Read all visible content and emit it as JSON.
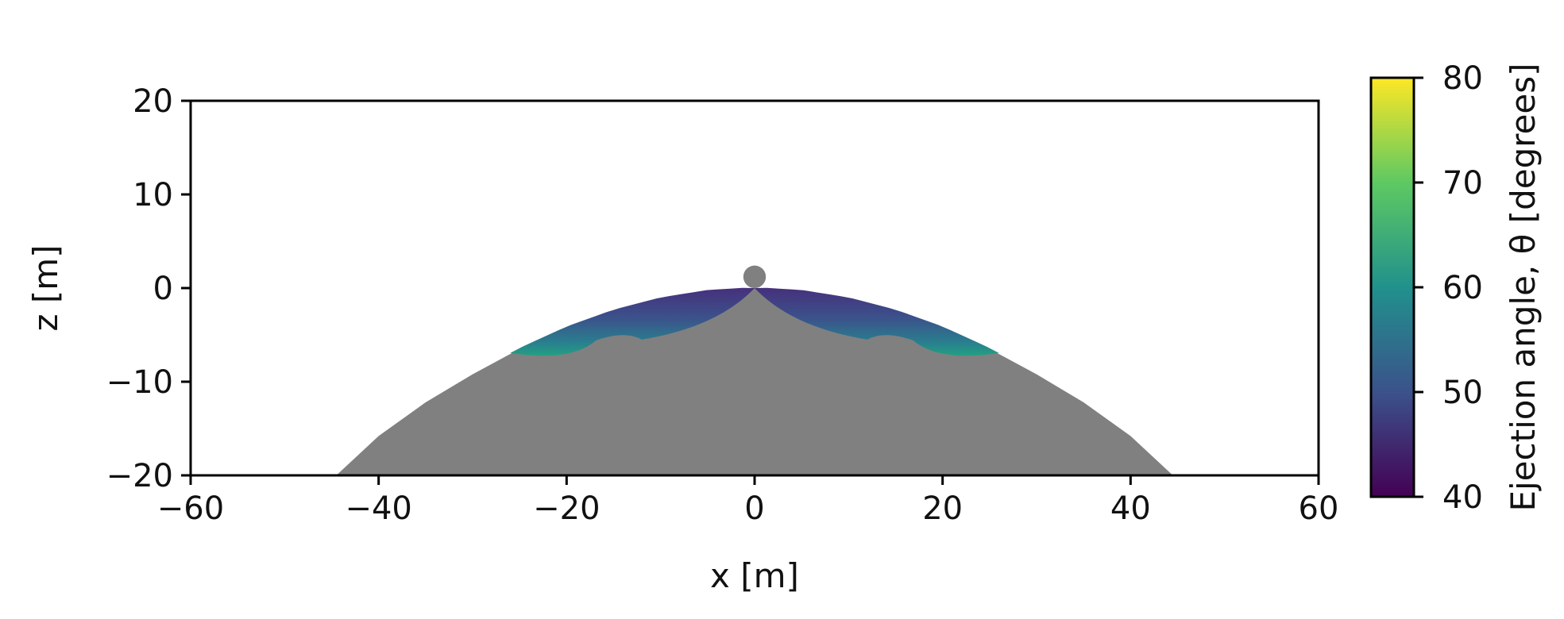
{
  "chart_data": {
    "type": "heatmap",
    "title": "",
    "xlabel": "x [m]",
    "ylabel": "z [m]",
    "xlim": [
      -60,
      60
    ],
    "ylim": [
      -20,
      20
    ],
    "x_ticks": [
      -60,
      -40,
      -20,
      0,
      20,
      40,
      60
    ],
    "y_ticks": [
      20,
      10,
      0,
      -10,
      -20
    ],
    "x_tick_labels": [
      "−60",
      "−40",
      "−20",
      "0",
      "20",
      "40",
      "60"
    ],
    "y_tick_labels": [
      "20",
      "10",
      "0",
      "−10",
      "−20"
    ],
    "grid": false,
    "target_body": {
      "color": "#808080",
      "surface_profile": [
        {
          "x": -44.5,
          "z": -20
        },
        {
          "x": -40,
          "z": -15.8
        },
        {
          "x": -35,
          "z": -12.2
        },
        {
          "x": -30,
          "z": -9.2
        },
        {
          "x": -25,
          "z": -6.5
        },
        {
          "x": -20,
          "z": -4.2
        },
        {
          "x": -15,
          "z": -2.4
        },
        {
          "x": -10,
          "z": -1.1
        },
        {
          "x": -5,
          "z": -0.3
        },
        {
          "x": 0,
          "z": 0
        },
        {
          "x": 5,
          "z": -0.3
        },
        {
          "x": 10,
          "z": -1.1
        },
        {
          "x": 15,
          "z": -2.4
        },
        {
          "x": 20,
          "z": -4.2
        },
        {
          "x": 25,
          "z": -6.5
        },
        {
          "x": 30,
          "z": -9.2
        },
        {
          "x": 35,
          "z": -12.2
        },
        {
          "x": 40,
          "z": -15.8
        },
        {
          "x": 44.5,
          "z": -20
        }
      ]
    },
    "impactor": {
      "x": 0,
      "z": 1.2,
      "radius": 1.2,
      "color": "#808080"
    },
    "ejecta_lobes": [
      {
        "side": "left",
        "outer": [
          -26,
          -6.5
        ],
        "inner": [
          -12,
          -5.5
        ],
        "apex": [
          0,
          0
        ]
      },
      {
        "side": "right",
        "outer": [
          26,
          -6.5
        ],
        "inner": [
          12,
          -5.5
        ],
        "apex": [
          0,
          0
        ]
      }
    ],
    "colorbar": {
      "label": "Ejection angle, θ [degrees]",
      "colormap": "viridis",
      "min": 40,
      "max": 80,
      "ticks": [
        80,
        70,
        60,
        50,
        40
      ],
      "tick_labels": [
        "80",
        "70",
        "60",
        "50",
        "40"
      ],
      "stops": [
        "#440154",
        "#3b528b",
        "#21918c",
        "#5ec962",
        "#fde725"
      ]
    }
  }
}
